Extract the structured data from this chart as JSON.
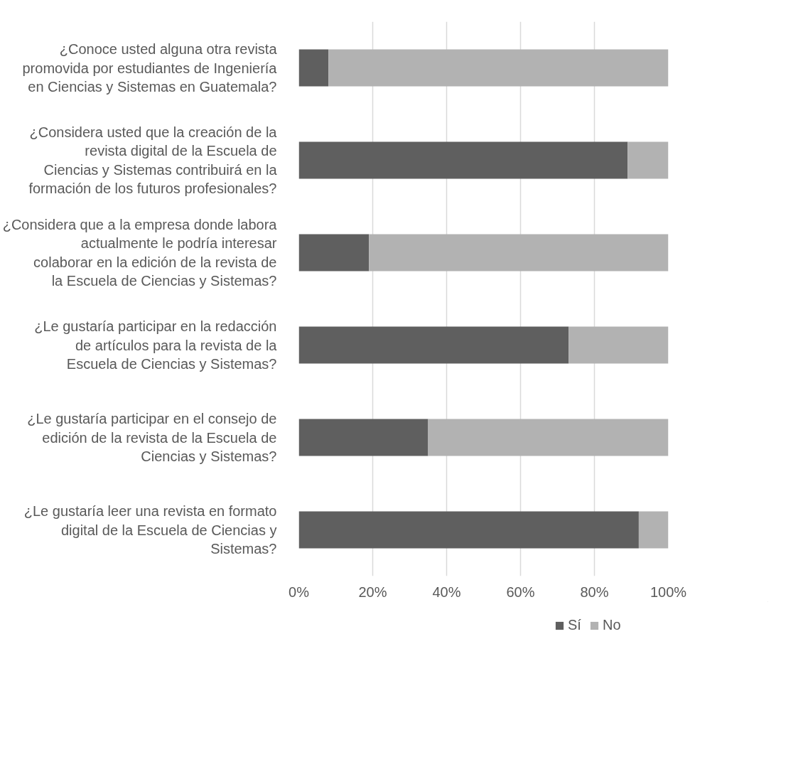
{
  "chart_data": {
    "type": "bar",
    "orientation": "horizontal",
    "stacked": true,
    "categories": [
      "¿Conoce usted alguna otra revista promovida por estudiantes de Ingeniería en Ciencias y Sistemas en Guatemala?",
      "¿Considera usted que la creación de la revista digital de la Escuela de Ciencias y Sistemas contribuirá en la formación de los futuros profesionales?",
      "¿Considera que a la empresa donde labora actualmente le podría interesar colaborar en la edición de la revista de la Escuela de Ciencias y Sistemas?",
      "¿Le gustaría participar en la redacción de artículos para la revista de la Escuela de Ciencias y Sistemas?",
      "¿Le gustaría participar en el consejo de edición de la revista de la Escuela de Ciencias y Sistemas?",
      "¿Le gustaría leer una revista en formato digital de la Escuela de Ciencias y Sistemas?"
    ],
    "series": [
      {
        "name": "Sí",
        "color": "#5f5f5f",
        "values": [
          8,
          89,
          19,
          73,
          35,
          92
        ]
      },
      {
        "name": "No",
        "color": "#b2b2b2",
        "values": [
          92,
          11,
          81,
          27,
          65,
          8
        ]
      }
    ],
    "xlim": [
      0,
      100
    ],
    "xticks": [
      {
        "value": 0,
        "label": "0%"
      },
      {
        "value": 20,
        "label": "20%"
      },
      {
        "value": 40,
        "label": "40%"
      },
      {
        "value": 60,
        "label": "60%"
      },
      {
        "value": 80,
        "label": "80%"
      },
      {
        "value": 100,
        "label": "100%"
      }
    ],
    "grid": "x",
    "legend": "bottom"
  }
}
